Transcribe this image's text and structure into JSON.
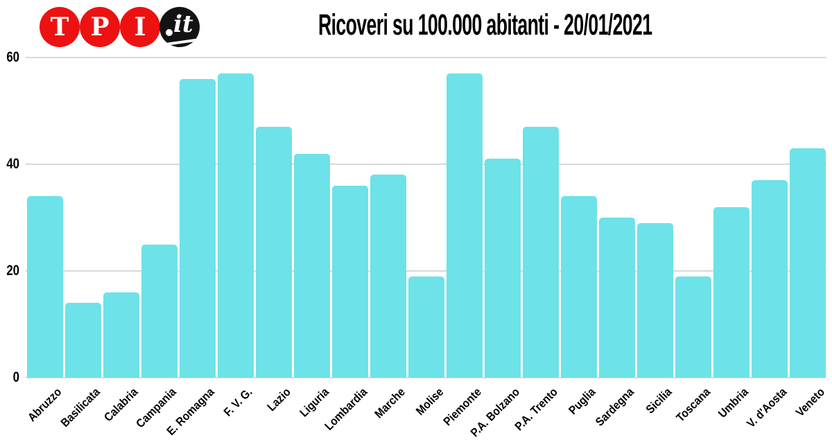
{
  "page": {
    "background": "#ffffff"
  },
  "logo": {
    "name": "TPI.it",
    "letters": [
      "T",
      "P",
      "I"
    ],
    "suffix": "it",
    "circle_red": "#ee1111",
    "circle_black": "#131313"
  },
  "chart_data": {
    "type": "bar",
    "title": "Ricoveri su 100.000 abitanti - 20/01/2021",
    "categories": [
      "Abruzzo",
      "Basilicata",
      "Calabria",
      "Campania",
      "E. Romagna",
      "F. V. G.",
      "Lazio",
      "Liguria",
      "Lombardia",
      "Marche",
      "Molise",
      "Piemonte",
      "P.A. Bolzano",
      "P.A. Trento",
      "Puglia",
      "Sardegna",
      "Sicilia",
      "Toscana",
      "Umbria",
      "V. d'Aosta",
      "Veneto"
    ],
    "values": [
      34,
      14,
      16,
      25,
      56,
      57,
      47,
      42,
      36,
      38,
      19,
      57,
      41,
      47,
      34,
      30,
      29,
      19,
      32,
      37,
      43
    ],
    "xlabel": "",
    "ylabel": "",
    "ylim": [
      0,
      60
    ],
    "yticks": [
      0,
      20,
      40,
      60
    ],
    "legend": false,
    "grid": "horizontal",
    "bar_color": "#6de2e8",
    "gridline_color": "#d8d8d8",
    "axis_text_color": "#000000"
  }
}
